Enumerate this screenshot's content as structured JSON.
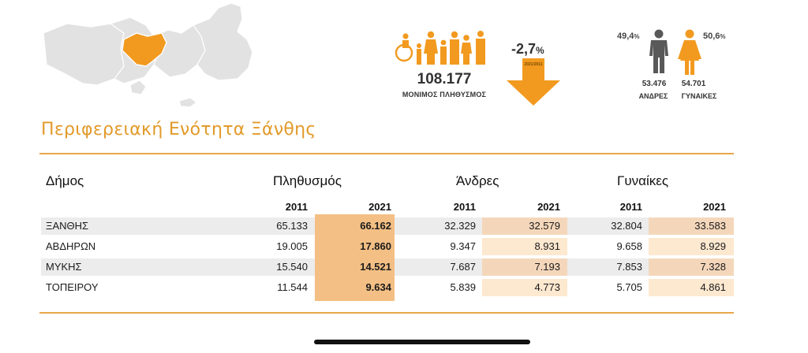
{
  "header": {
    "population_value": "108.177",
    "population_label": "ΜΟΝΙΜΟΣ ΠΛΗΘΥΣΜΟΣ",
    "change_value": "-2,7",
    "change_unit": "%",
    "change_period": "2021/2011",
    "men_percent": "49,4",
    "women_percent": "50,6",
    "percent_unit": "%",
    "men_count": "53.476",
    "women_count": "54.701",
    "men_label": "ΑΝΔΡΕΣ",
    "women_label": "ΓΥΝΑΙΚΕΣ",
    "accent_color": "#f29a1f"
  },
  "region_title": "Περιφερειακή Ενότητα Ξάνθης",
  "table": {
    "col_municipality": "Δήμος",
    "col_population": "Πληθυσμός",
    "col_men": "Άνδρες",
    "col_women": "Γυναίκες",
    "years": [
      "2011",
      "2021"
    ],
    "rows": [
      {
        "name": "ΞΑΝΘΗΣ",
        "pop2011": "65.133",
        "pop2021": "66.162",
        "men2011": "32.329",
        "men2021": "32.579",
        "women2011": "32.804",
        "women2021": "33.583"
      },
      {
        "name": "ΑΒΔΗΡΩΝ",
        "pop2011": "19.005",
        "pop2021": "17.860",
        "men2011": "9.347",
        "men2021": "8.931",
        "women2011": "9.658",
        "women2021": "8.929"
      },
      {
        "name": "ΜΥΚΗΣ",
        "pop2011": "15.540",
        "pop2021": "14.521",
        "men2011": "7.687",
        "men2021": "7.193",
        "women2011": "7.853",
        "women2021": "7.328"
      },
      {
        "name": "ΤΟΠΕΙΡΟΥ",
        "pop2011": "11.544",
        "pop2021": "9.634",
        "men2011": "5.839",
        "men2021": "4.773",
        "women2011": "5.705",
        "women2021": "4.861"
      }
    ]
  }
}
